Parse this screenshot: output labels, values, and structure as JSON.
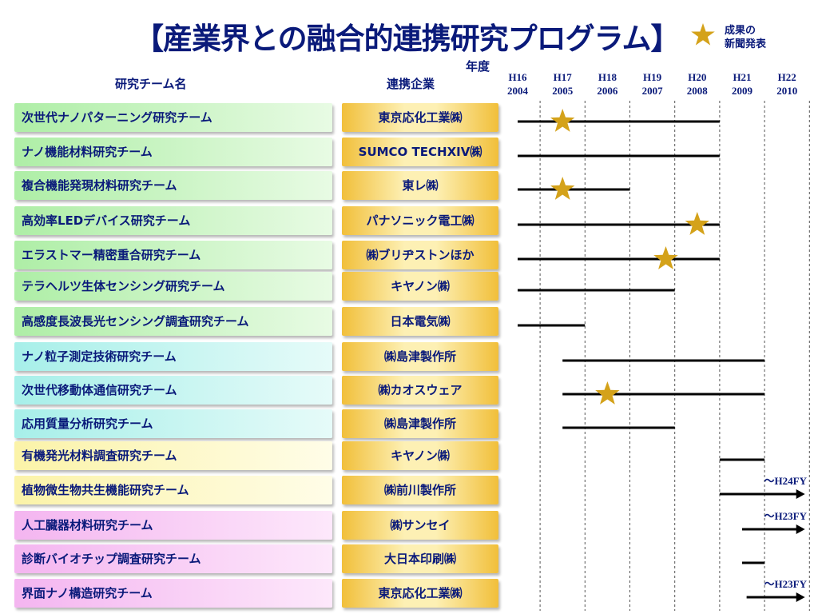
{
  "page": {
    "title": "【産業界との融合的連携研究プログラム】",
    "legend_label_line1": "成果の",
    "legend_label_line2": "新聞発表",
    "column_team": "研究チーム名",
    "column_company": "連携企業",
    "year_caption": "年度"
  },
  "colors": {
    "text": "#0a1a7a",
    "star": "#d4a21a",
    "bar": "#000000",
    "green": "#c9f3c2",
    "cyan": "#c2f3ee",
    "yellow": "#fdf8c4",
    "pink": "#f6c9f3",
    "company_gold": "#f1bf3a"
  },
  "years": [
    {
      "era": "H16",
      "ad": "2004"
    },
    {
      "era": "H17",
      "ad": "2005"
    },
    {
      "era": "H18",
      "ad": "2006"
    },
    {
      "era": "H19",
      "ad": "2007"
    },
    {
      "era": "H20",
      "ad": "2008"
    },
    {
      "era": "H21",
      "ad": "2009"
    },
    {
      "era": "H22",
      "ad": "2010"
    }
  ],
  "teams": [
    {
      "name": "次世代ナノパターニング研究チーム",
      "company": "東京応化工業㈱",
      "color": "green",
      "start": 2004,
      "end": 2008.5,
      "stars": [
        2005
      ],
      "arrow": false,
      "note": ""
    },
    {
      "name": "ナノ機能材料研究チーム",
      "company": "SUMCO TECHXIV㈱",
      "color": "green",
      "start": 2004,
      "end": 2008.5,
      "stars": [],
      "arrow": false,
      "note": ""
    },
    {
      "name": "複合機能発現材料研究チーム",
      "company": "東レ㈱",
      "color": "green",
      "start": 2004,
      "end": 2006.5,
      "stars": [
        2005
      ],
      "arrow": false,
      "note": ""
    },
    {
      "name": "高効率LEDデバイス研究チーム",
      "company": "パナソニック電工㈱",
      "color": "green",
      "start": 2004,
      "end": 2008.5,
      "stars": [
        2008
      ],
      "arrow": false,
      "note": ""
    },
    {
      "name": "エラストマー精密重合研究チーム",
      "company": "㈱ブリヂストンほか",
      "color": "green",
      "start": 2004,
      "end": 2008.5,
      "stars": [
        2007.3
      ],
      "arrow": false,
      "note": ""
    },
    {
      "name": "テラヘルツ生体センシング研究チーム",
      "company": "キヤノン㈱",
      "color": "green",
      "start": 2004,
      "end": 2007.5,
      "stars": [],
      "arrow": false,
      "note": ""
    },
    {
      "name": "高感度長波長光センシング調査研究チーム",
      "company": "日本電気㈱",
      "color": "green",
      "start": 2004,
      "end": 2005.5,
      "stars": [],
      "arrow": false,
      "note": ""
    },
    {
      "name": "ナノ粒子測定技術研究チーム",
      "company": "㈱島津製作所",
      "color": "cyan",
      "start": 2005,
      "end": 2009.5,
      "stars": [],
      "arrow": false,
      "note": ""
    },
    {
      "name": "次世代移動体通信研究チーム",
      "company": "㈱カオスウェア",
      "color": "cyan",
      "start": 2005,
      "end": 2009.5,
      "stars": [
        2006
      ],
      "arrow": false,
      "note": ""
    },
    {
      "name": "応用質量分析研究チーム",
      "company": "㈱島津製作所",
      "color": "cyan",
      "start": 2005,
      "end": 2007.5,
      "stars": [],
      "arrow": false,
      "note": ""
    },
    {
      "name": "有機発光材料調査研究チーム",
      "company": "キヤノン㈱",
      "color": "yellow",
      "start": 2008.5,
      "end": 2009.5,
      "stars": [],
      "arrow": false,
      "note": ""
    },
    {
      "name": "植物微生物共生機能研究チーム",
      "company": "㈱前川製作所",
      "color": "yellow",
      "start": 2008.5,
      "end": 2010.4,
      "stars": [],
      "arrow": true,
      "note": "～H24FY"
    },
    {
      "name": "人工臓器材料研究チーム",
      "company": "㈱サンセイ",
      "color": "pink",
      "start": 2009,
      "end": 2010.4,
      "stars": [],
      "arrow": true,
      "note": "～H23FY"
    },
    {
      "name": "診断バイオチップ調査研究チーム",
      "company": "大日本印刷㈱",
      "color": "pink",
      "start": 2009,
      "end": 2009.5,
      "stars": [],
      "arrow": false,
      "note": ""
    },
    {
      "name": "界面ナノ構造研究チーム",
      "company": "東京応化工業㈱",
      "color": "pink",
      "start": 2009.1,
      "end": 2010.4,
      "stars": [],
      "arrow": true,
      "note": "～H23FY"
    }
  ]
}
